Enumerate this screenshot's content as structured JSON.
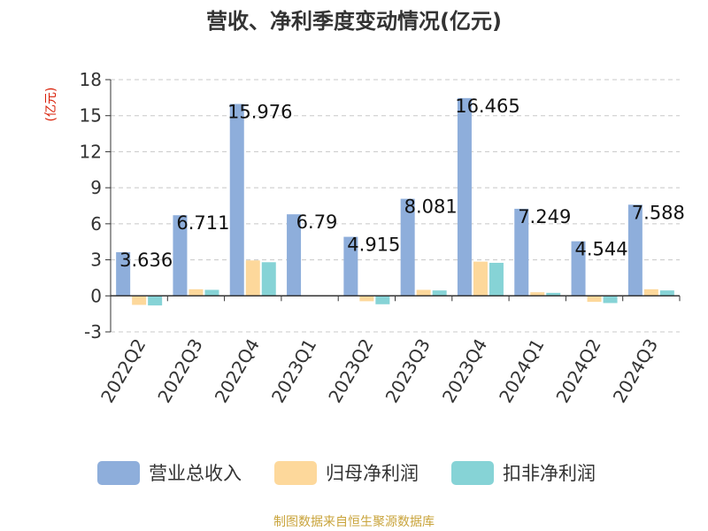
{
  "chart_data": {
    "type": "bar",
    "title": "营收、净利季度变动情况(亿元)",
    "ylabel": "(亿元)",
    "ylim": [
      -3,
      18
    ],
    "yticks": [
      -3,
      0,
      3,
      6,
      9,
      12,
      15,
      18
    ],
    "grid": true,
    "legend_position": "bottom",
    "categories": [
      "2022Q2",
      "2022Q3",
      "2022Q4",
      "2023Q1",
      "2023Q2",
      "2023Q3",
      "2023Q4",
      "2024Q1",
      "2024Q2",
      "2024Q3"
    ],
    "series": [
      {
        "name": "营业总收入",
        "color": "#8eaedb",
        "values": [
          3.636,
          6.711,
          15.976,
          6.79,
          4.915,
          8.081,
          16.465,
          7.249,
          4.544,
          7.588
        ]
      },
      {
        "name": "归母净利润",
        "color": "#fdd89b",
        "values": [
          -0.75,
          0.55,
          2.95,
          0.05,
          -0.45,
          0.5,
          2.85,
          0.3,
          -0.5,
          0.55
        ]
      },
      {
        "name": "扣非净利润",
        "color": "#86d3d6",
        "values": [
          -0.8,
          0.5,
          2.8,
          0.05,
          -0.7,
          0.45,
          2.75,
          0.25,
          -0.6,
          0.45
        ]
      }
    ],
    "data_labels": [
      "3.636",
      "6.711",
      "15.976",
      "6.79",
      "4.915",
      "8.081",
      "16.465",
      "7.249",
      "4.544",
      "7.588"
    ]
  },
  "source": "制图数据来自恒生聚源数据库"
}
